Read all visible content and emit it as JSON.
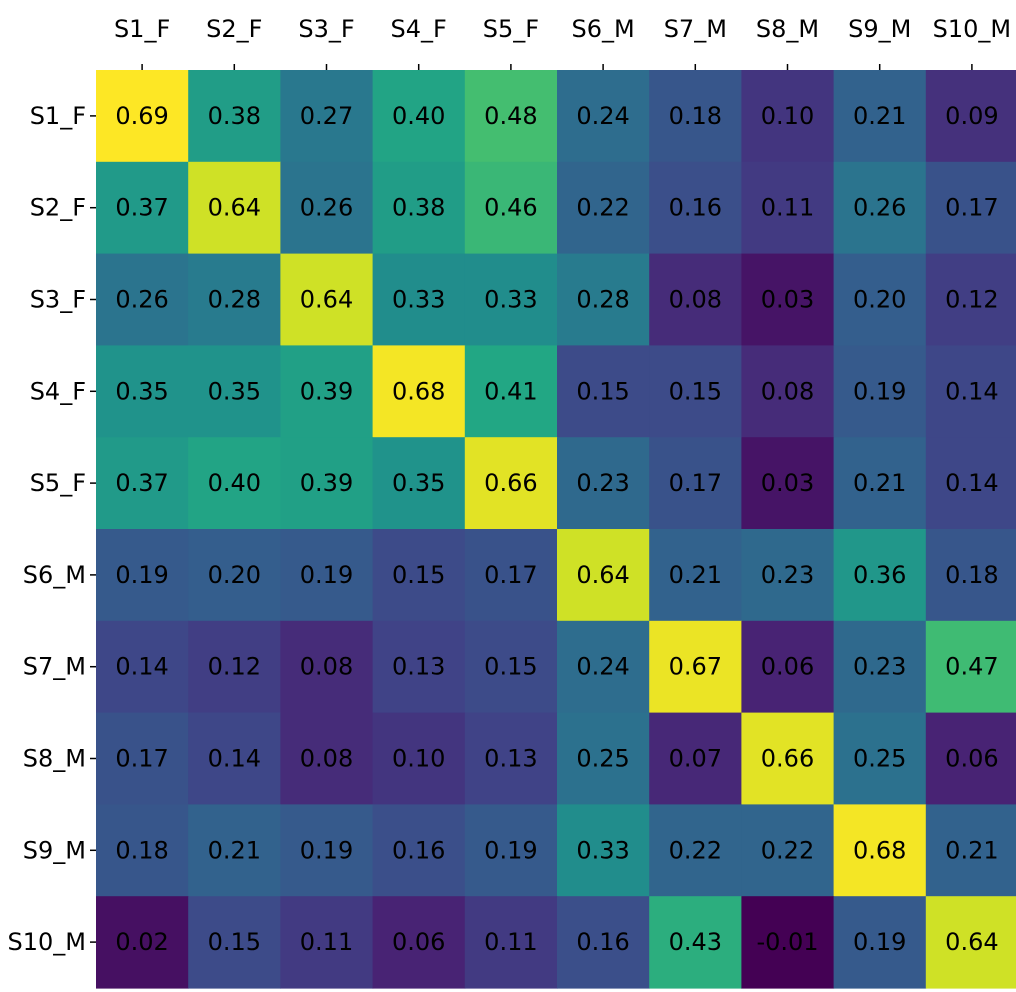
{
  "chart_data": {
    "type": "heatmap",
    "title": "",
    "xlabel": "",
    "ylabel": "",
    "x_labels": [
      "S1_F",
      "S2_F",
      "S3_F",
      "S4_F",
      "S5_F",
      "S6_M",
      "S7_M",
      "S8_M",
      "S9_M",
      "S10_M"
    ],
    "y_labels": [
      "S1_F",
      "S2_F",
      "S3_F",
      "S4_F",
      "S5_F",
      "S6_M",
      "S7_M",
      "S8_M",
      "S9_M",
      "S10_M"
    ],
    "x_axis_position": "top",
    "colormap": "viridis",
    "color_range": [
      -0.01,
      0.69
    ],
    "value_format": "0.00",
    "grid": false,
    "legend": "none",
    "values": [
      [
        0.69,
        0.38,
        0.27,
        0.4,
        0.48,
        0.24,
        0.18,
        0.1,
        0.21,
        0.09
      ],
      [
        0.37,
        0.64,
        0.26,
        0.38,
        0.46,
        0.22,
        0.16,
        0.11,
        0.26,
        0.17
      ],
      [
        0.26,
        0.28,
        0.64,
        0.33,
        0.33,
        0.28,
        0.08,
        0.03,
        0.2,
        0.12
      ],
      [
        0.35,
        0.35,
        0.39,
        0.68,
        0.41,
        0.15,
        0.15,
        0.08,
        0.19,
        0.14
      ],
      [
        0.37,
        0.4,
        0.39,
        0.35,
        0.66,
        0.23,
        0.17,
        0.03,
        0.21,
        0.14
      ],
      [
        0.19,
        0.2,
        0.19,
        0.15,
        0.17,
        0.64,
        0.21,
        0.23,
        0.36,
        0.18
      ],
      [
        0.14,
        0.12,
        0.08,
        0.13,
        0.15,
        0.24,
        0.67,
        0.06,
        0.23,
        0.47
      ],
      [
        0.17,
        0.14,
        0.08,
        0.1,
        0.13,
        0.25,
        0.07,
        0.66,
        0.25,
        0.06
      ],
      [
        0.18,
        0.21,
        0.19,
        0.16,
        0.19,
        0.33,
        0.22,
        0.22,
        0.68,
        0.21
      ],
      [
        0.02,
        0.15,
        0.11,
        0.06,
        0.11,
        0.16,
        0.43,
        -0.01,
        0.19,
        0.64
      ]
    ]
  }
}
